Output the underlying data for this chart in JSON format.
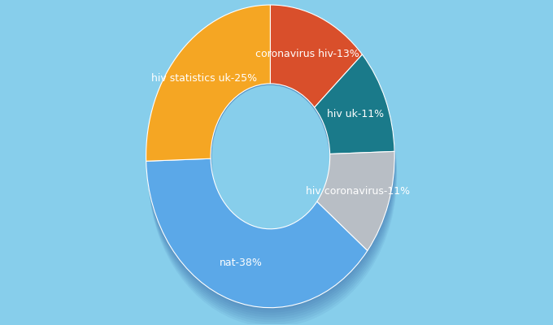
{
  "labels": [
    "coronavirus hiv",
    "hiv uk",
    "hiv coronavirus",
    "nat",
    "hiv statistics uk"
  ],
  "values": [
    13,
    11,
    11,
    38,
    25
  ],
  "display_labels": [
    "coronavirus hiv-13%",
    "hiv uk-11%",
    "hiv coronavirus-11%",
    "nat-38%",
    "hiv statistics uk-25%"
  ],
  "colors": [
    "#D94F2B",
    "#1A7A8A",
    "#B8BEC5",
    "#5BA8E8",
    "#F5A623"
  ],
  "background_color": "#87CEEB",
  "shadow_color": "#3060A0",
  "figsize": [
    6.8,
    4.0
  ],
  "dpi": 100,
  "label_fontsize": 9.0,
  "label_color": "white",
  "startangle": 90,
  "donut_width": 0.52
}
